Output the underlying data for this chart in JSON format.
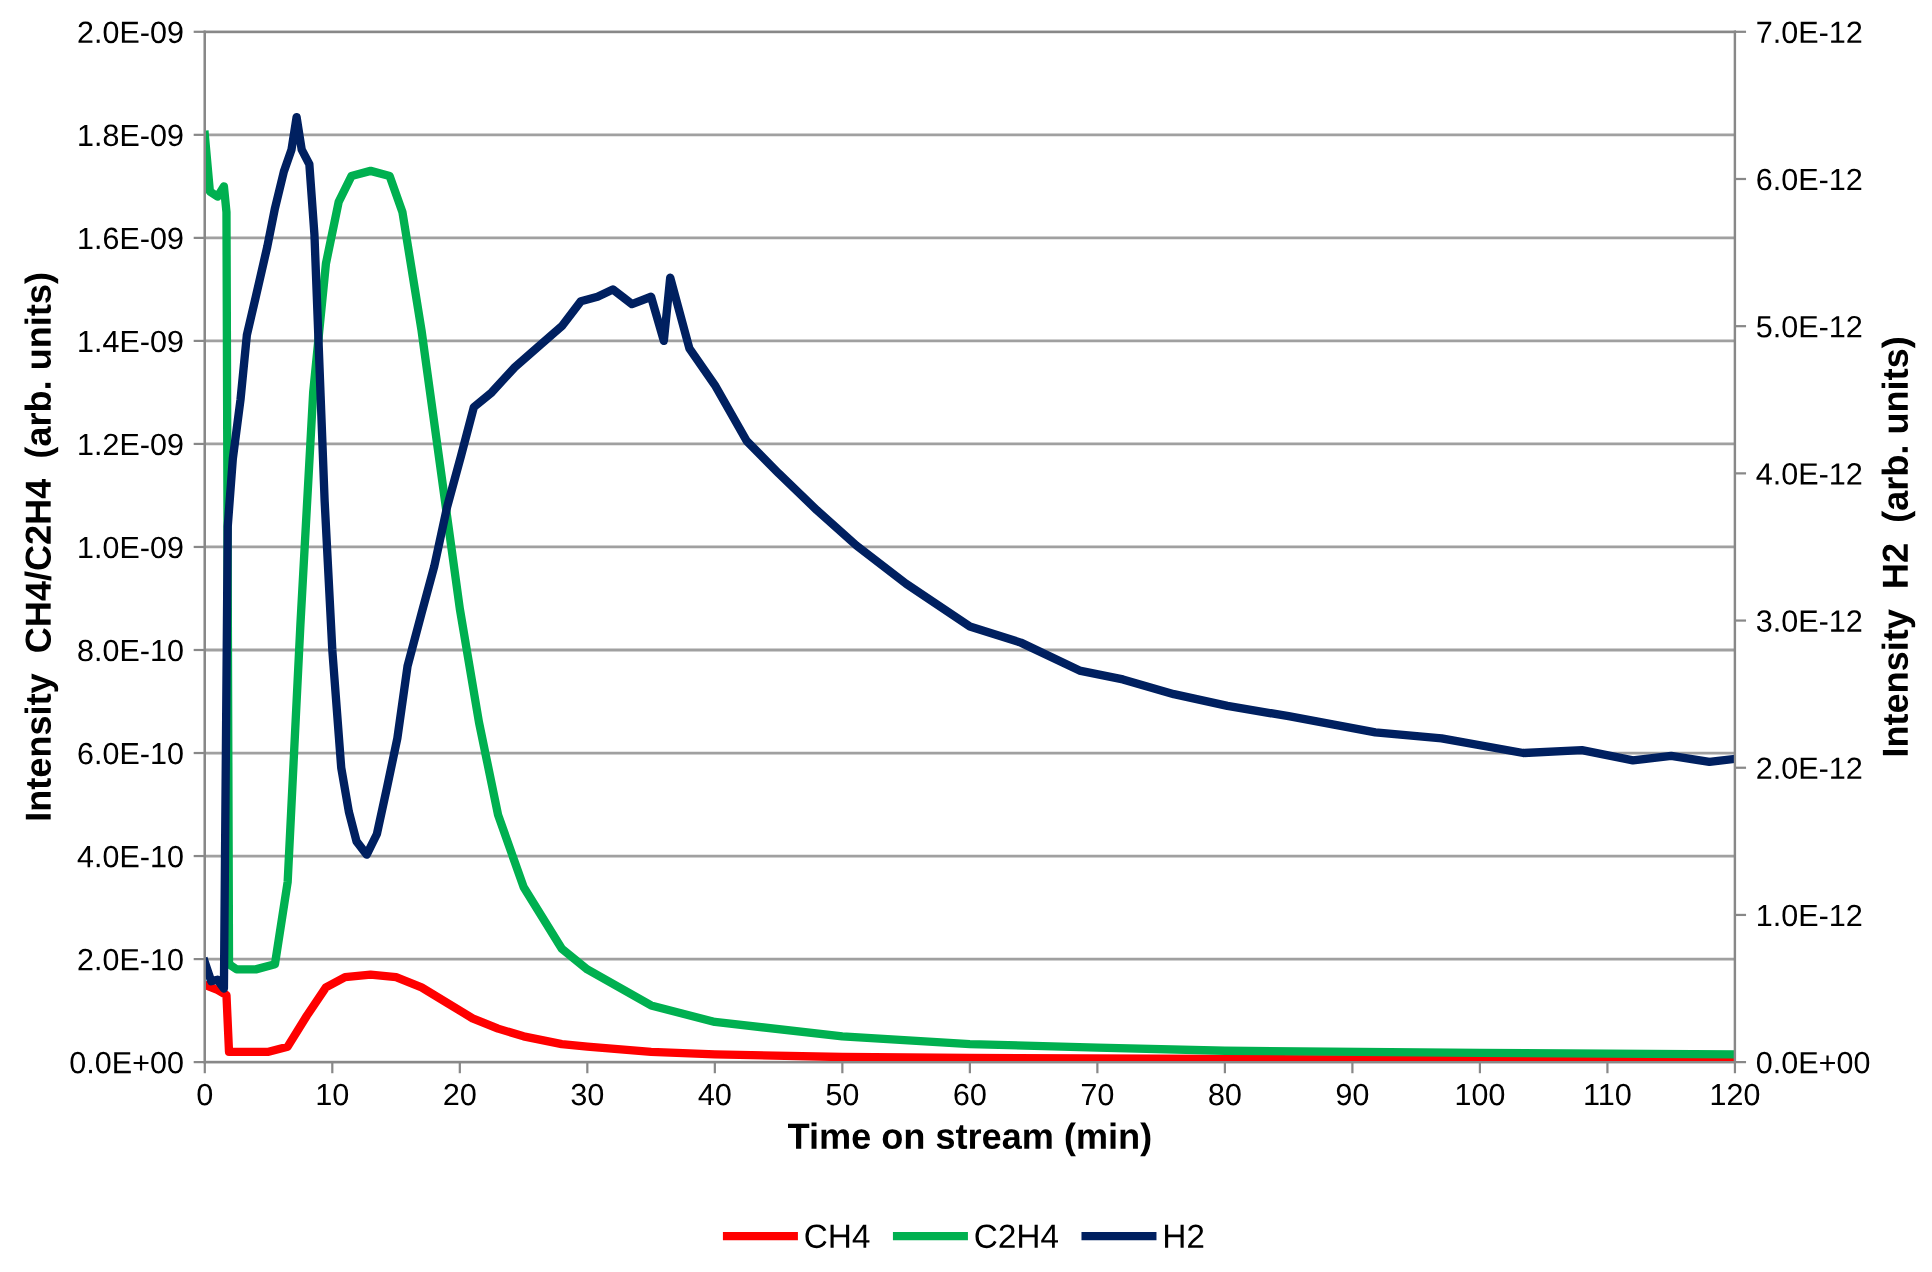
{
  "chart_data": {
    "type": "line",
    "xlabel": "Time on stream (min)",
    "ylabel": "Intensity  CH4/C2H4  (arb. units)",
    "y2label": "Intensity  H2  (arb. units)",
    "xlim": [
      0,
      120
    ],
    "xticks": [
      0,
      10,
      20,
      30,
      40,
      50,
      60,
      70,
      80,
      90,
      100,
      110,
      120
    ],
    "ylim": [
      0,
      2e-09
    ],
    "yticks": [
      {
        "value": 0,
        "label": "0.0E+00"
      },
      {
        "value": 2e-10,
        "label": "2.0E-10"
      },
      {
        "value": 4e-10,
        "label": "4.0E-10"
      },
      {
        "value": 6e-10,
        "label": "6.0E-10"
      },
      {
        "value": 8e-10,
        "label": "8.0E-10"
      },
      {
        "value": 1e-09,
        "label": "1.0E-09"
      },
      {
        "value": 1.2e-09,
        "label": "1.2E-09"
      },
      {
        "value": 1.4e-09,
        "label": "1.4E-09"
      },
      {
        "value": 1.6e-09,
        "label": "1.6E-09"
      },
      {
        "value": 1.8e-09,
        "label": "1.8E-09"
      },
      {
        "value": 2e-09,
        "label": "2.0E-09"
      }
    ],
    "y2lim": [
      0,
      7e-12
    ],
    "y2ticks": [
      {
        "value": 0,
        "label": "0.0E+00"
      },
      {
        "value": 1e-12,
        "label": "1.0E-12"
      },
      {
        "value": 2e-12,
        "label": "2.0E-12"
      },
      {
        "value": 3e-12,
        "label": "3.0E-12"
      },
      {
        "value": 4e-12,
        "label": "4.0E-12"
      },
      {
        "value": 5e-12,
        "label": "5.0E-12"
      },
      {
        "value": 6e-12,
        "label": "6.0E-12"
      },
      {
        "value": 7e-12,
        "label": "7.0E-12"
      }
    ],
    "grid": "y",
    "legend": "bottom",
    "marker": "none",
    "line_style": "solid",
    "series": [
      {
        "name": "CH4",
        "color": "#ff0000",
        "x": [
          0,
          1,
          1.7,
          1.9,
          3,
          5,
          6.5,
          8,
          9.5,
          11,
          13,
          15,
          17,
          19,
          21,
          23,
          25,
          28,
          30,
          35,
          40,
          50,
          60,
          80,
          100,
          120
        ],
        "values": [
          1.5e-10,
          1.4e-10,
          1.3e-10,
          2e-11,
          2e-11,
          2e-11,
          3e-11,
          9e-11,
          1.45e-10,
          1.65e-10,
          1.7e-10,
          1.65e-10,
          1.45e-10,
          1.15e-10,
          8.5e-11,
          6.5e-11,
          5e-11,
          3.5e-11,
          3e-11,
          2e-11,
          1.5e-11,
          1e-11,
          8e-12,
          6e-12,
          5e-12,
          5e-12
        ]
      },
      {
        "name": "C2H4",
        "color": "#00b050",
        "x": [
          0,
          0.4,
          1,
          1.5,
          1.7,
          1.9,
          2.5,
          4,
          5.5,
          6.5,
          7.5,
          8.5,
          9.5,
          10.5,
          11.5,
          13,
          14.5,
          15.5,
          17,
          18.5,
          20,
          21.5,
          23,
          25,
          28,
          30,
          35,
          40,
          50,
          60,
          70,
          80,
          100,
          120
        ],
        "values": [
          1.8e-09,
          1.69e-09,
          1.68e-09,
          1.7e-09,
          1.65e-09,
          1.9e-10,
          1.8e-10,
          1.8e-10,
          1.9e-10,
          3.5e-10,
          8.5e-10,
          1.3e-09,
          1.55e-09,
          1.67e-09,
          1.72e-09,
          1.73e-09,
          1.72e-09,
          1.65e-09,
          1.42e-09,
          1.15e-09,
          8.8e-10,
          6.6e-10,
          4.8e-10,
          3.4e-10,
          2.2e-10,
          1.8e-10,
          1.1e-10,
          7.8e-11,
          5e-11,
          3.5e-11,
          2.8e-11,
          2.2e-11,
          1.8e-11,
          1.5e-11
        ]
      },
      {
        "name": "H2",
        "color": "#002060",
        "axis": "y2",
        "x": [
          0,
          0.5,
          1,
          1.5,
          1.8,
          2.2,
          2.8,
          3.3,
          4,
          4.9,
          5.5,
          6.2,
          6.8,
          7.2,
          7.6,
          8.2,
          8.6,
          9.4,
          10,
          10.7,
          11.3,
          11.9,
          12.7,
          13.5,
          14.3,
          15.1,
          15.9,
          17,
          18,
          19,
          20.1,
          21.1,
          22.5,
          24.3,
          26,
          28,
          29.5,
          30.8,
          32,
          33.5,
          35,
          36,
          36.5,
          38,
          40,
          42.5,
          45,
          48,
          51.1,
          55,
          60,
          64,
          68.6,
          72,
          76,
          80.2,
          85,
          91.8,
          97,
          103.4,
          108,
          112,
          115,
          118,
          120
        ],
        "values": [
          6.8e-13,
          5.5e-13,
          5.6e-13,
          5e-13,
          3.64e-12,
          4.1e-12,
          4.5e-12,
          4.94e-12,
          5.2e-12,
          5.54e-12,
          5.8e-12,
          6.05e-12,
          6.2e-12,
          6.42e-12,
          6.2e-12,
          6.1e-12,
          5.62e-12,
          3.81e-12,
          2.8e-12,
          2e-12,
          1.7e-12,
          1.5e-12,
          1.41e-12,
          1.55e-12,
          1.87e-12,
          2.2e-12,
          2.69e-12,
          3.05e-12,
          3.37e-12,
          3.77e-12,
          4.12e-12,
          4.45e-12,
          4.55e-12,
          4.72e-12,
          4.85e-12,
          5e-12,
          5.17e-12,
          5.2e-12,
          5.25e-12,
          5.15e-12,
          5.2e-12,
          4.9e-12,
          5.33e-12,
          4.85e-12,
          4.6e-12,
          4.22e-12,
          4e-12,
          3.75e-12,
          3.51e-12,
          3.25e-12,
          2.96e-12,
          2.85e-12,
          2.66e-12,
          2.6e-12,
          2.5e-12,
          2.42e-12,
          2.35e-12,
          2.24e-12,
          2.2e-12,
          2.1e-12,
          2.12e-12,
          2.05e-12,
          2.08e-12,
          2.04e-12,
          2.06e-12
        ]
      }
    ]
  }
}
